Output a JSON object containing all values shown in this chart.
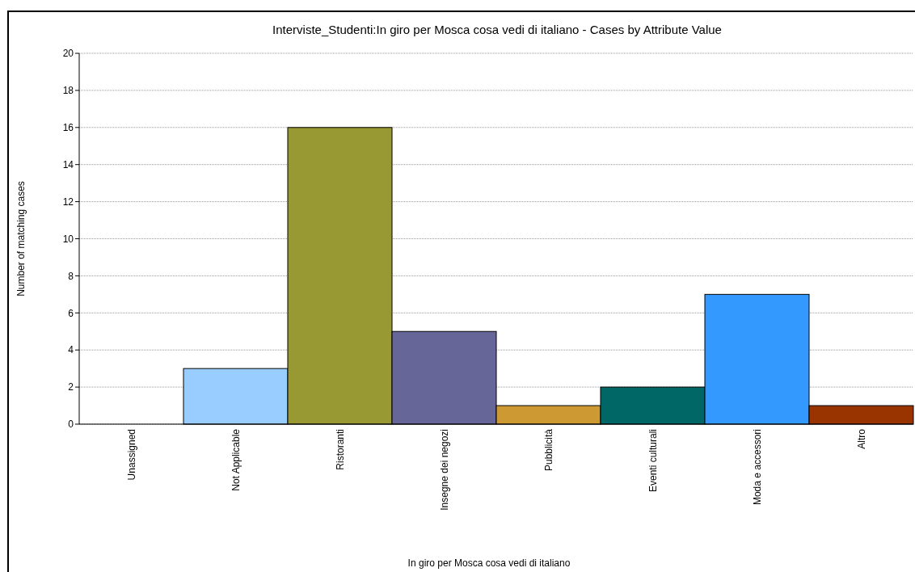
{
  "chart_data": {
    "type": "bar",
    "title": "Interviste_Studenti:In giro per Mosca cosa vedi di italiano - Cases by Attribute Value",
    "xlabel": "In giro per Mosca cosa vedi di italiano",
    "ylabel": "Number of matching cases",
    "categories": [
      "Unassigned",
      "Not Applicable",
      "Ristoranti",
      "Insegne dei negozi",
      "Pubblicità",
      "Eventi culturali",
      "Moda e accessori",
      "Altro"
    ],
    "values": [
      0,
      3,
      16,
      5,
      1,
      2,
      7,
      1
    ],
    "colors": [
      "#ffffff",
      "#99ccff",
      "#999933",
      "#666699",
      "#cc9933",
      "#006666",
      "#3399ff",
      "#993300"
    ],
    "ylim": [
      0,
      20
    ],
    "yticks": [
      0,
      2,
      4,
      6,
      8,
      10,
      12,
      14,
      16,
      18,
      20
    ],
    "grid": "y"
  }
}
